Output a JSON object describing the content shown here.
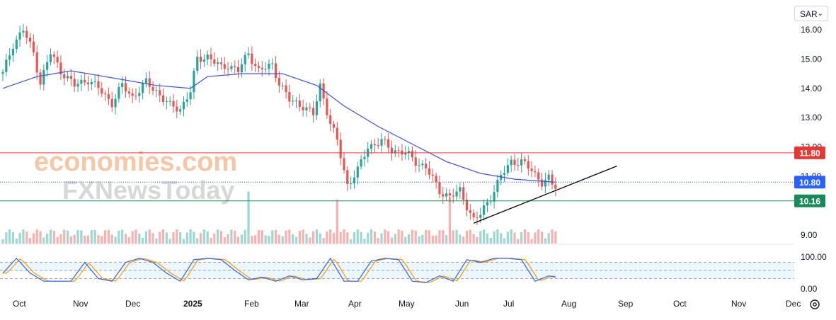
{
  "toolbar": {
    "currency": "SAR"
  },
  "watermark": {
    "line1": "economies.com",
    "line2": "FXNewsToday"
  },
  "colors": {
    "up": "#26a69a",
    "down": "#ef5350",
    "ma": "#3f51d4",
    "resistance": "#e53935",
    "support": "#1b8a5a",
    "current": "#2962ff",
    "trendline": "#000000",
    "stoch_k": "#2962ff",
    "stoch_d": "#ff9800"
  },
  "chart_data": {
    "type": "candlestick",
    "y_axis": {
      "ticks": [
        "16.00",
        "15.00",
        "14.00",
        "13.00",
        "12.00",
        "11.00",
        "9.00"
      ],
      "range": [
        9.0,
        16.3
      ]
    },
    "x_axis": {
      "labels": [
        "Oct",
        "Nov",
        "Dec",
        "2025",
        "Feb",
        "Mar",
        "Apr",
        "May",
        "Jun",
        "Jul",
        "Aug",
        "Sep",
        "Oct",
        "Nov",
        "Dec"
      ]
    },
    "anchors": [
      [
        0,
        14.5
      ],
      [
        3,
        15.5
      ],
      [
        6,
        16.0
      ],
      [
        9,
        15.2
      ],
      [
        11,
        14.2
      ],
      [
        14,
        15.2
      ],
      [
        17,
        14.6
      ],
      [
        21,
        14.1
      ],
      [
        25,
        14.3
      ],
      [
        28,
        14.0
      ],
      [
        32,
        13.5
      ],
      [
        35,
        14.1
      ],
      [
        38,
        13.7
      ],
      [
        42,
        14.2
      ],
      [
        45,
        13.9
      ],
      [
        49,
        13.4
      ],
      [
        52,
        13.3
      ],
      [
        55,
        13.9
      ],
      [
        57,
        15.0
      ],
      [
        60,
        15.1
      ],
      [
        64,
        14.7
      ],
      [
        66,
        14.8
      ],
      [
        69,
        14.6
      ],
      [
        72,
        15.2
      ],
      [
        75,
        14.6
      ],
      [
        79,
        14.8
      ],
      [
        81,
        14.2
      ],
      [
        84,
        13.6
      ],
      [
        88,
        13.4
      ],
      [
        91,
        13.1
      ],
      [
        93,
        14.1
      ],
      [
        96,
        12.8
      ],
      [
        98,
        12.2
      ],
      [
        101,
        10.7
      ],
      [
        104,
        11.2
      ],
      [
        107,
        12.0
      ],
      [
        111,
        12.2
      ],
      [
        114,
        11.9
      ],
      [
        118,
        11.8
      ],
      [
        121,
        11.5
      ],
      [
        124,
        11.3
      ],
      [
        128,
        10.5
      ],
      [
        131,
        10.3
      ],
      [
        134,
        10.5
      ],
      [
        138,
        9.5
      ],
      [
        140,
        9.7
      ],
      [
        143,
        10.3
      ],
      [
        146,
        11.0
      ],
      [
        149,
        11.5
      ],
      [
        152,
        11.5
      ],
      [
        155,
        11.2
      ],
      [
        158,
        10.8
      ],
      [
        160,
        10.9
      ],
      [
        161,
        10.7
      ],
      [
        162,
        10.65
      ]
    ],
    "moving_average": [
      [
        0,
        14.0
      ],
      [
        10,
        14.4
      ],
      [
        20,
        14.6
      ],
      [
        35,
        14.3
      ],
      [
        45,
        14.1
      ],
      [
        55,
        14.0
      ],
      [
        60,
        14.4
      ],
      [
        70,
        14.5
      ],
      [
        82,
        14.5
      ],
      [
        92,
        14.1
      ],
      [
        100,
        13.4
      ],
      [
        110,
        12.7
      ],
      [
        120,
        12.1
      ],
      [
        130,
        11.5
      ],
      [
        140,
        11.1
      ],
      [
        150,
        10.9
      ],
      [
        162,
        10.8
      ]
    ],
    "levels": [
      {
        "label": "11.80",
        "value": 11.8,
        "role": "resistance"
      },
      {
        "label": "10.80",
        "value": 10.8,
        "role": "current"
      },
      {
        "label": "10.16",
        "value": 10.16,
        "role": "support"
      }
    ],
    "trendline": [
      [
        138,
        9.4
      ],
      [
        180,
        11.35
      ]
    ],
    "stochastic": {
      "axis_labels": [
        "100.00",
        "0.00"
      ],
      "anchors": [
        [
          0,
          40
        ],
        [
          4,
          95
        ],
        [
          8,
          40
        ],
        [
          12,
          10
        ],
        [
          16,
          10
        ],
        [
          20,
          10
        ],
        [
          24,
          80
        ],
        [
          28,
          20
        ],
        [
          32,
          10
        ],
        [
          36,
          80
        ],
        [
          40,
          95
        ],
        [
          44,
          80
        ],
        [
          48,
          40
        ],
        [
          52,
          10
        ],
        [
          56,
          90
        ],
        [
          60,
          95
        ],
        [
          64,
          90
        ],
        [
          68,
          50
        ],
        [
          72,
          15
        ],
        [
          76,
          25
        ],
        [
          80,
          10
        ],
        [
          84,
          30
        ],
        [
          88,
          15
        ],
        [
          92,
          20
        ],
        [
          96,
          95
        ],
        [
          100,
          10
        ],
        [
          104,
          10
        ],
        [
          108,
          85
        ],
        [
          112,
          95
        ],
        [
          116,
          90
        ],
        [
          120,
          10
        ],
        [
          124,
          5
        ],
        [
          128,
          30
        ],
        [
          132,
          10
        ],
        [
          136,
          90
        ],
        [
          140,
          80
        ],
        [
          144,
          95
        ],
        [
          148,
          95
        ],
        [
          152,
          90
        ],
        [
          156,
          10
        ],
        [
          160,
          30
        ],
        [
          162,
          25
        ]
      ]
    }
  }
}
